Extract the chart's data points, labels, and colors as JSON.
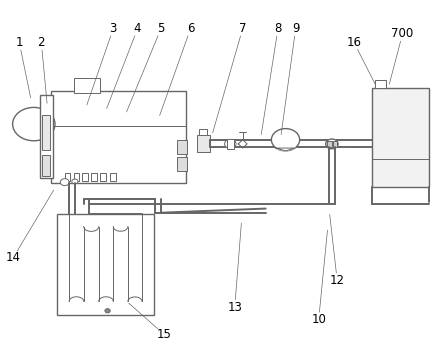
{
  "line_color": "#666666",
  "line_width": 1.0,
  "thin_lw": 0.7,
  "pipe_lw": 1.4,
  "label_fontsize": 8.5,
  "labels_info": {
    "1": [
      0.042,
      0.88,
      0.068,
      0.72
    ],
    "2": [
      0.092,
      0.88,
      0.105,
      0.705
    ],
    "3": [
      0.255,
      0.92,
      0.195,
      0.7
    ],
    "4": [
      0.31,
      0.92,
      0.24,
      0.69
    ],
    "5": [
      0.363,
      0.92,
      0.285,
      0.68
    ],
    "6": [
      0.43,
      0.92,
      0.36,
      0.67
    ],
    "7": [
      0.548,
      0.92,
      0.48,
      0.62
    ],
    "8": [
      0.628,
      0.92,
      0.59,
      0.615
    ],
    "9": [
      0.668,
      0.92,
      0.635,
      0.615
    ],
    "10": [
      0.72,
      0.082,
      0.74,
      0.34
    ],
    "12": [
      0.762,
      0.195,
      0.745,
      0.385
    ],
    "13": [
      0.53,
      0.118,
      0.545,
      0.36
    ],
    "14": [
      0.028,
      0.26,
      0.12,
      0.455
    ],
    "15": [
      0.37,
      0.04,
      0.29,
      0.13
    ],
    "16": [
      0.8,
      0.88,
      0.848,
      0.76
    ],
    "700": [
      0.91,
      0.905,
      0.88,
      0.76
    ]
  }
}
